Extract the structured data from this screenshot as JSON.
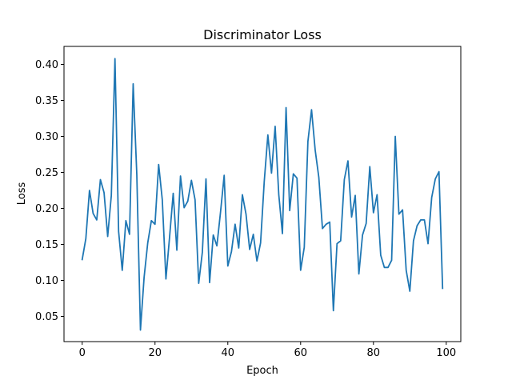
{
  "chart_data": {
    "type": "line",
    "title": "Discriminator Loss",
    "xlabel": "Epoch",
    "ylabel": "Loss",
    "xlim": [
      -5,
      104
    ],
    "ylim": [
      0.015,
      0.425
    ],
    "x_ticks": [
      "0",
      "20",
      "40",
      "60",
      "80",
      "100"
    ],
    "y_ticks": [
      "0.05",
      "0.10",
      "0.15",
      "0.20",
      "0.25",
      "0.30",
      "0.35",
      "0.40"
    ],
    "grid": false,
    "legend": "none",
    "series": [
      {
        "color": "#1f77b4",
        "x": [
          0,
          1,
          2,
          3,
          4,
          5,
          6,
          7,
          8,
          9,
          10,
          11,
          12,
          13,
          14,
          15,
          16,
          17,
          18,
          19,
          20,
          21,
          22,
          23,
          24,
          25,
          26,
          27,
          28,
          29,
          30,
          31,
          32,
          33,
          34,
          35,
          36,
          37,
          38,
          39,
          40,
          41,
          42,
          43,
          44,
          45,
          46,
          47,
          48,
          49,
          50,
          51,
          52,
          53,
          54,
          55,
          56,
          57,
          58,
          59,
          60,
          61,
          62,
          63,
          64,
          65,
          66,
          67,
          68,
          69,
          70,
          71,
          72,
          73,
          74,
          75,
          76,
          77,
          78,
          79,
          80,
          81,
          82,
          83,
          84,
          85,
          86,
          87,
          88,
          89,
          90,
          91,
          92,
          93,
          94,
          95,
          96,
          97,
          98,
          99
        ],
        "values": [
          0.129,
          0.158,
          0.225,
          0.193,
          0.184,
          0.24,
          0.222,
          0.161,
          0.218,
          0.408,
          0.168,
          0.114,
          0.183,
          0.164,
          0.373,
          0.247,
          0.031,
          0.104,
          0.152,
          0.183,
          0.178,
          0.261,
          0.212,
          0.102,
          0.16,
          0.221,
          0.142,
          0.245,
          0.201,
          0.21,
          0.239,
          0.212,
          0.096,
          0.139,
          0.241,
          0.097,
          0.163,
          0.148,
          0.195,
          0.246,
          0.12,
          0.14,
          0.178,
          0.145,
          0.219,
          0.192,
          0.143,
          0.164,
          0.127,
          0.152,
          0.237,
          0.302,
          0.249,
          0.314,
          0.219,
          0.165,
          0.34,
          0.197,
          0.248,
          0.242,
          0.114,
          0.146,
          0.293,
          0.337,
          0.281,
          0.243,
          0.172,
          0.178,
          0.181,
          0.058,
          0.151,
          0.155,
          0.24,
          0.266,
          0.188,
          0.218,
          0.109,
          0.163,
          0.179,
          0.258,
          0.194,
          0.219,
          0.135,
          0.118,
          0.118,
          0.128,
          0.3,
          0.192,
          0.198,
          0.114,
          0.085,
          0.155,
          0.176,
          0.184,
          0.184,
          0.151,
          0.215,
          0.241,
          0.251,
          0.089
        ]
      }
    ]
  }
}
